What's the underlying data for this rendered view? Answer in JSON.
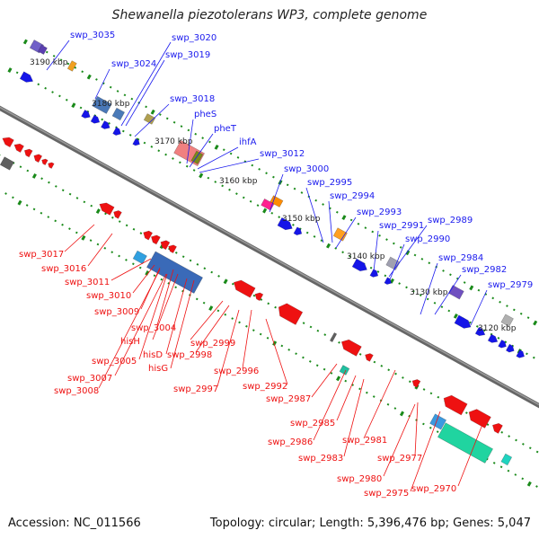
{
  "title": "Shewanella piezotolerans WP3, complete genome",
  "footer": {
    "accession": "Accession: NC_011566",
    "summary": "Topology: circular; Length: 5,396,476 bp; Genes: 5,047"
  },
  "colors": {
    "backbone": "#777777",
    "forward_label": "#1a1aee",
    "reverse_label": "#ee1111",
    "tick": "#1a8a1a"
  },
  "scale_ticks": [
    "3190 kbp",
    "3180 kbp",
    "3170 kbp",
    "3160 kbp",
    "3150 kbp",
    "3140 kbp",
    "3130 kbp",
    "3120 kbp"
  ],
  "forward_labels": [
    "swp_3035",
    "swp_3020",
    "swp_3024",
    "swp_3019",
    "swp_3018",
    "pheS",
    "pheT",
    "ihfA",
    "swp_3012",
    "swp_3000",
    "swp_2995",
    "swp_2994",
    "swp_2993",
    "swp_2991",
    "swp_2989",
    "swp_2990",
    "swp_2984",
    "swp_2982",
    "swp_2979"
  ],
  "reverse_labels": [
    "swp_3017",
    "swp_3016",
    "swp_3011",
    "swp_3010",
    "swp_3009",
    "swp_3004",
    "hisH",
    "swp_3005",
    "hisD",
    "swp_2999",
    "hisG",
    "swp_2998",
    "swp_3007",
    "swp_3008",
    "swp_2997",
    "swp_2996",
    "swp_2992",
    "swp_2987",
    "swp_2985",
    "swp_2986",
    "swp_2983",
    "swp_2981",
    "swp_2977",
    "swp_2980",
    "swp_2975",
    "swp_2970"
  ]
}
